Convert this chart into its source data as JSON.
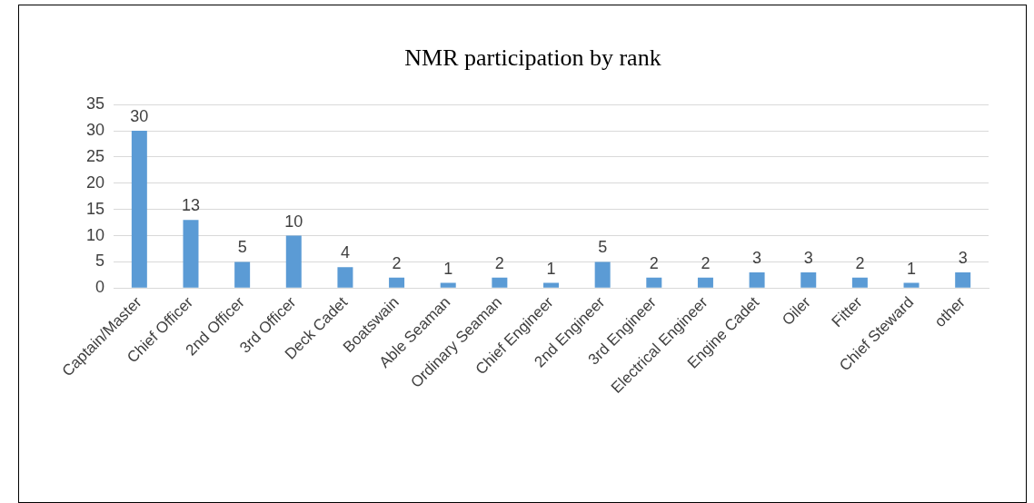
{
  "chart_data": {
    "type": "bar",
    "title": "NMR participation by rank",
    "categories": [
      "Captain/Master",
      "Chief Officer",
      "2nd Officer",
      "3rd Officer",
      "Deck Cadet",
      "Boatswain",
      "Able Seaman",
      "Ordinary Seaman",
      "Chief Engineer",
      "2nd Engineer",
      "3rd Engineer",
      "Electrical Engineer",
      "Engine Cadet",
      "Oiler",
      "Fitter",
      "Chief Steward",
      "other"
    ],
    "values": [
      30,
      13,
      5,
      10,
      4,
      2,
      1,
      2,
      1,
      5,
      2,
      2,
      3,
      3,
      2,
      1,
      3
    ],
    "color": "#5b9bd5",
    "ylim": [
      0,
      35
    ],
    "yticks": [
      0,
      5,
      10,
      15,
      20,
      25,
      30,
      35
    ],
    "grid": "y",
    "legend": false,
    "data_labels": true
  }
}
